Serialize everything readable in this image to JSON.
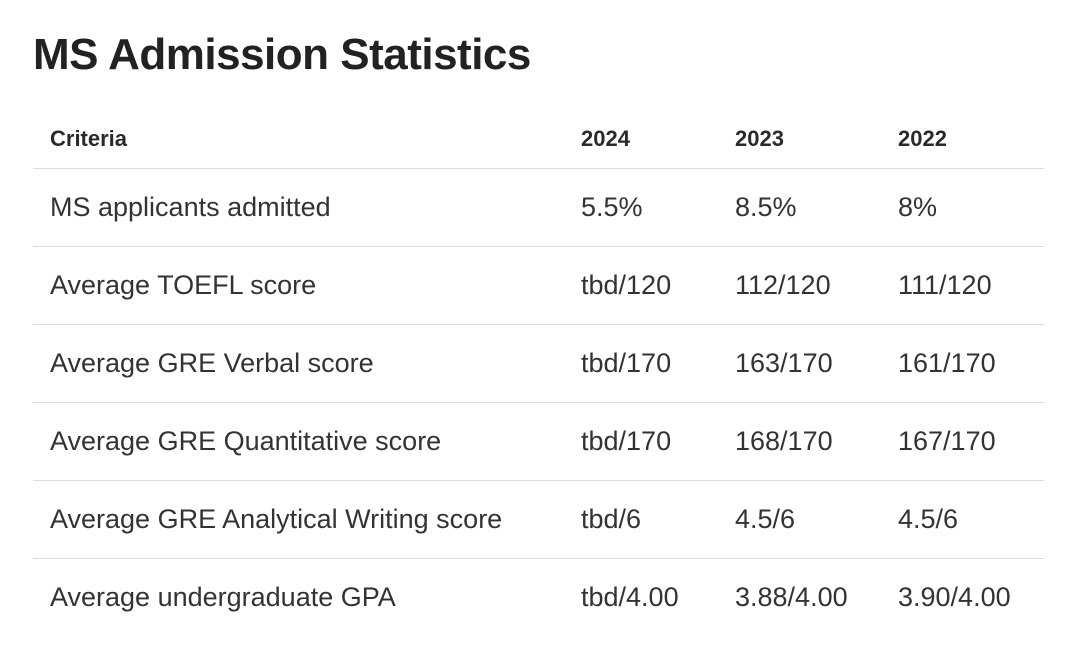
{
  "page": {
    "title": "MS Admission Statistics"
  },
  "table": {
    "headers": [
      "Criteria",
      "2024",
      "2023",
      "2022"
    ],
    "rows": [
      [
        "MS applicants admitted",
        "5.5%",
        "8.5%",
        "8%"
      ],
      [
        "Average TOEFL score",
        "tbd/120",
        "112/120",
        "111/120"
      ],
      [
        "Average GRE Verbal score",
        "tbd/170",
        "163/170",
        "161/170"
      ],
      [
        "Average GRE Quantitative score",
        "tbd/170",
        "168/170",
        "167/170"
      ],
      [
        "Average GRE Analytical Writing score",
        "tbd/6",
        "4.5/6",
        "4.5/6"
      ],
      [
        "Average undergraduate GPA",
        "tbd/4.00",
        "3.88/4.00",
        "3.90/4.00"
      ]
    ]
  }
}
